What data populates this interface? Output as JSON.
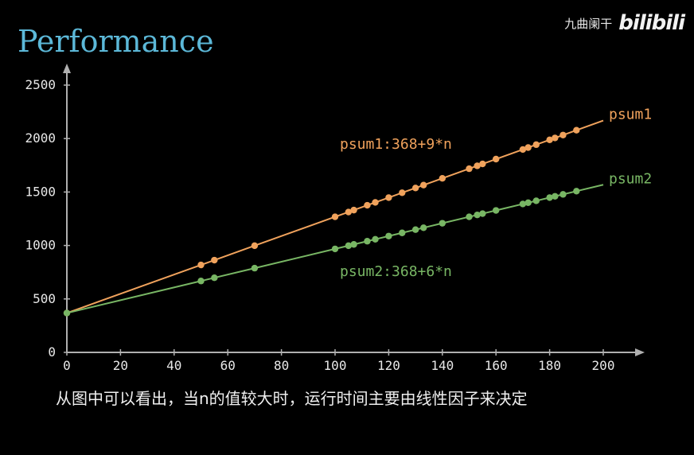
{
  "title": "Performance",
  "watermark": {
    "text": "九曲阑干",
    "logo": "bilibili"
  },
  "subtitle": "从图中可以看出，当n的值较大时，运行时间主要由线性因子来决定",
  "colors": {
    "title": "#5cb8d8",
    "psum1": "#f0a25c",
    "psum2": "#78b664",
    "axis": "#b0b0b0"
  },
  "chart_data": {
    "type": "line",
    "xlim": [
      0,
      200
    ],
    "ylim": [
      0,
      2500
    ],
    "xticks": [
      0,
      20,
      40,
      60,
      80,
      100,
      120,
      140,
      160,
      180,
      200
    ],
    "yticks": [
      0,
      500,
      1000,
      1500,
      2000,
      2500
    ],
    "grid": false,
    "series": [
      {
        "name": "psum1",
        "formula": "psum1:368+9*n",
        "color": "#f0a25c",
        "x": [
          0,
          50,
          55,
          70,
          100,
          105,
          107,
          112,
          115,
          120,
          125,
          130,
          133,
          140,
          150,
          153,
          155,
          160,
          170,
          172,
          175,
          180,
          182,
          185,
          190,
          200
        ],
        "y": [
          368,
          818,
          863,
          998,
          1268,
          1313,
          1331,
          1376,
          1403,
          1448,
          1493,
          1538,
          1565,
          1628,
          1718,
          1745,
          1763,
          1808,
          1898,
          1916,
          1943,
          1988,
          2006,
          2033,
          2078,
          2168
        ]
      },
      {
        "name": "psum2",
        "formula": "psum2:368+6*n",
        "color": "#78b664",
        "x": [
          0,
          50,
          55,
          70,
          100,
          105,
          107,
          112,
          115,
          120,
          125,
          130,
          133,
          140,
          150,
          153,
          155,
          160,
          170,
          172,
          175,
          180,
          182,
          185,
          190,
          200
        ],
        "y": [
          368,
          668,
          698,
          788,
          968,
          998,
          1010,
          1040,
          1058,
          1088,
          1118,
          1148,
          1166,
          1208,
          1268,
          1286,
          1298,
          1328,
          1388,
          1400,
          1418,
          1448,
          1460,
          1478,
          1508,
          1568
        ]
      }
    ]
  }
}
